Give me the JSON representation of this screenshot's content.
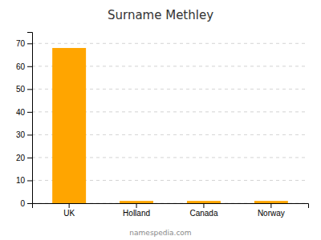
{
  "chart_data": {
    "type": "bar",
    "title": "Surname Methley",
    "categories": [
      "UK",
      "Holland",
      "Canada",
      "Norway"
    ],
    "values": [
      68,
      1,
      1,
      1
    ],
    "color": "#FFA500",
    "ylim": [
      0,
      75
    ],
    "yticks": [
      0,
      10,
      20,
      30,
      40,
      50,
      60,
      70
    ],
    "grid": true,
    "annotations": [
      "namespedia.com"
    ]
  }
}
